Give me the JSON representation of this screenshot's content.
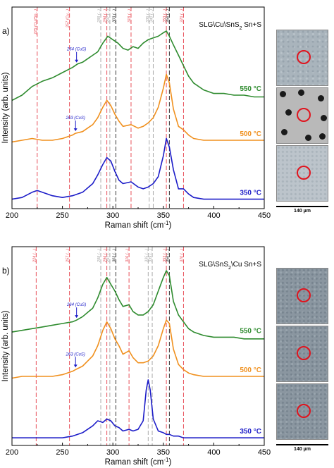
{
  "chart_data": [
    {
      "type": "line",
      "panel_label": "a)",
      "sample_label": "SLG\\Cu\\SnS",
      "sample_label_sub": "2",
      "sample_label_tail": " Sn+S",
      "xlabel": "Raman shift (cm",
      "xlabel_sup": "-1",
      "xlabel_tail": ")",
      "ylabel": "Intensity (arb. units)",
      "xlim": [
        200,
        450
      ],
      "xticks": [
        200,
        250,
        300,
        350,
        400,
        450
      ],
      "reference_lines": [
        {
          "x": 225,
          "label": "225 (Cu2Sn...)",
          "color": "#e8505a"
        },
        {
          "x": 257,
          "label": "257 (Cu...)",
          "color": "#e8505a"
        },
        {
          "x": 288,
          "label": "288 (...)",
          "color": "#aaaaaa"
        },
        {
          "x": 294,
          "label": "294 (...)",
          "color": "#e8505a"
        },
        {
          "x": 297,
          "label": "297 (...)",
          "color": "#aaaaaa"
        },
        {
          "x": 303,
          "label": "303 (...)",
          "color": "#333333"
        },
        {
          "x": 318,
          "label": "318 (...)",
          "color": "#e8505a"
        },
        {
          "x": 336,
          "label": "336 (...)",
          "color": "#aaaaaa"
        },
        {
          "x": 340,
          "label": "340 (...)",
          "color": "#aaaaaa"
        },
        {
          "x": 353,
          "label": "353 (...)",
          "color": "#e8505a"
        },
        {
          "x": 356,
          "label": "356 (...)",
          "color": "#333333"
        },
        {
          "x": 370,
          "label": "370 (...)",
          "color": "#e8505a"
        }
      ],
      "series": [
        {
          "name": "550 °C",
          "color": "#2e8b2e",
          "x": [
            200,
            210,
            220,
            230,
            240,
            250,
            260,
            265,
            270,
            280,
            285,
            290,
            295,
            300,
            305,
            310,
            315,
            320,
            325,
            330,
            335,
            340,
            345,
            350,
            353,
            356,
            360,
            365,
            370,
            375,
            380,
            390,
            400,
            410,
            420,
            430,
            440,
            450
          ],
          "y": [
            0.6,
            0.63,
            0.68,
            0.71,
            0.73,
            0.76,
            0.79,
            0.81,
            0.82,
            0.86,
            0.88,
            0.93,
            0.97,
            0.95,
            0.93,
            0.9,
            0.89,
            0.91,
            0.9,
            0.93,
            0.95,
            0.96,
            0.97,
            0.99,
            1.0,
            0.97,
            0.92,
            0.86,
            0.8,
            0.74,
            0.7,
            0.66,
            0.64,
            0.64,
            0.63,
            0.63,
            0.62,
            0.62
          ]
        },
        {
          "name": "500 °C",
          "color": "#f0901e",
          "x": [
            200,
            210,
            220,
            230,
            240,
            250,
            260,
            263,
            270,
            280,
            285,
            290,
            294,
            298,
            302,
            306,
            310,
            318,
            325,
            330,
            335,
            340,
            345,
            350,
            353,
            356,
            360,
            365,
            370,
            375,
            380,
            390,
            400,
            410,
            420,
            430,
            440,
            450
          ],
          "y": [
            0.36,
            0.37,
            0.38,
            0.37,
            0.37,
            0.38,
            0.4,
            0.41,
            0.42,
            0.46,
            0.5,
            0.56,
            0.6,
            0.57,
            0.52,
            0.48,
            0.45,
            0.46,
            0.44,
            0.45,
            0.47,
            0.5,
            0.56,
            0.67,
            0.75,
            0.7,
            0.55,
            0.45,
            0.43,
            0.4,
            0.38,
            0.37,
            0.37,
            0.37,
            0.37,
            0.37,
            0.37,
            0.37
          ]
        },
        {
          "name": "350 °C",
          "color": "#1c1cc8",
          "x": [
            200,
            210,
            220,
            225,
            230,
            240,
            250,
            260,
            270,
            280,
            285,
            290,
            294,
            298,
            302,
            306,
            310,
            318,
            325,
            330,
            335,
            340,
            345,
            350,
            353,
            356,
            360,
            365,
            370,
            375,
            380,
            390,
            400,
            410,
            420,
            430,
            440,
            450
          ],
          "y": [
            0.03,
            0.04,
            0.07,
            0.08,
            0.07,
            0.05,
            0.04,
            0.05,
            0.07,
            0.12,
            0.17,
            0.23,
            0.27,
            0.25,
            0.19,
            0.14,
            0.12,
            0.13,
            0.1,
            0.09,
            0.1,
            0.12,
            0.16,
            0.28,
            0.38,
            0.33,
            0.2,
            0.09,
            0.09,
            0.06,
            0.04,
            0.03,
            0.03,
            0.03,
            0.03,
            0.03,
            0.03,
            0.03
          ]
        }
      ],
      "annotations": [
        {
          "text": "264 (CuS)",
          "x": 264,
          "series": 0
        },
        {
          "text": "263 (CuS)",
          "x": 263,
          "series": 1
        }
      ],
      "scale_label": "140 µm"
    },
    {
      "type": "line",
      "panel_label": "b)",
      "sample_label": "SLG\\SnS",
      "sample_label_sub": "2",
      "sample_label_tail": "\\Cu Sn+S",
      "xlabel": "Raman shift (cm",
      "xlabel_sup": "-1",
      "xlabel_tail": ")",
      "ylabel": "Intensity (arb. units)",
      "xlim": [
        200,
        450
      ],
      "xticks": [
        200,
        250,
        300,
        350,
        400,
        450
      ],
      "reference_lines": [
        {
          "x": 224,
          "label": "224 (...)",
          "color": "#e8505a"
        },
        {
          "x": 257,
          "label": "257 (...)",
          "color": "#e8505a"
        },
        {
          "x": 288,
          "label": "288 (...)",
          "color": "#aaaaaa"
        },
        {
          "x": 294,
          "label": "294 (...)",
          "color": "#e8505a"
        },
        {
          "x": 297,
          "label": "297 (...)",
          "color": "#aaaaaa"
        },
        {
          "x": 303,
          "label": "303 (...)",
          "color": "#333333"
        },
        {
          "x": 316,
          "label": "316 (...)",
          "color": "#e8505a"
        },
        {
          "x": 335,
          "label": "335 (...)",
          "color": "#aaaaaa"
        },
        {
          "x": 339,
          "label": "339 (...)",
          "color": "#aaaaaa"
        },
        {
          "x": 353,
          "label": "353 (...)",
          "color": "#e8505a"
        },
        {
          "x": 356,
          "label": "356 (...)",
          "color": "#333333"
        },
        {
          "x": 370,
          "label": "370 (...)",
          "color": "#e8505a"
        }
      ],
      "series": [
        {
          "name": "550 °C",
          "color": "#2e8b2e",
          "x": [
            200,
            210,
            220,
            230,
            240,
            250,
            260,
            264,
            270,
            280,
            285,
            290,
            294,
            298,
            302,
            306,
            310,
            316,
            320,
            325,
            330,
            335,
            340,
            345,
            350,
            353,
            356,
            360,
            365,
            370,
            375,
            380,
            390,
            400,
            410,
            420,
            430,
            440,
            450
          ],
          "y": [
            0.64,
            0.65,
            0.66,
            0.67,
            0.68,
            0.69,
            0.7,
            0.71,
            0.73,
            0.78,
            0.84,
            0.92,
            0.96,
            0.92,
            0.88,
            0.83,
            0.79,
            0.8,
            0.76,
            0.74,
            0.74,
            0.76,
            0.8,
            0.88,
            0.96,
            1.0,
            0.97,
            0.82,
            0.74,
            0.7,
            0.66,
            0.64,
            0.62,
            0.61,
            0.61,
            0.61,
            0.6,
            0.6,
            0.6
          ]
        },
        {
          "name": "500 °C",
          "color": "#f0901e",
          "x": [
            200,
            210,
            220,
            230,
            240,
            250,
            260,
            263,
            270,
            280,
            285,
            290,
            294,
            298,
            302,
            306,
            310,
            316,
            320,
            325,
            330,
            335,
            340,
            345,
            350,
            353,
            356,
            360,
            365,
            370,
            375,
            380,
            390,
            400,
            410,
            420,
            430,
            440,
            450
          ],
          "y": [
            0.37,
            0.38,
            0.38,
            0.38,
            0.38,
            0.39,
            0.41,
            0.42,
            0.44,
            0.5,
            0.56,
            0.65,
            0.7,
            0.66,
            0.6,
            0.56,
            0.51,
            0.53,
            0.49,
            0.46,
            0.46,
            0.47,
            0.5,
            0.56,
            0.66,
            0.71,
            0.69,
            0.54,
            0.45,
            0.42,
            0.4,
            0.39,
            0.38,
            0.38,
            0.38,
            0.38,
            0.38,
            0.38,
            0.38
          ]
        },
        {
          "name": "350 °C",
          "color": "#1c1cc8",
          "x": [
            200,
            210,
            220,
            230,
            240,
            250,
            260,
            270,
            275,
            280,
            285,
            290,
            294,
            298,
            302,
            306,
            310,
            316,
            320,
            325,
            330,
            333,
            335,
            337,
            340,
            345,
            350,
            353,
            356,
            360,
            365,
            370,
            380,
            390,
            400,
            420,
            440,
            450
          ],
          "y": [
            0.02,
            0.02,
            0.02,
            0.02,
            0.02,
            0.02,
            0.03,
            0.05,
            0.07,
            0.09,
            0.12,
            0.11,
            0.13,
            0.12,
            0.09,
            0.08,
            0.06,
            0.07,
            0.06,
            0.07,
            0.12,
            0.3,
            0.36,
            0.3,
            0.13,
            0.06,
            0.05,
            0.04,
            0.04,
            0.03,
            0.03,
            0.02,
            0.02,
            0.02,
            0.02,
            0.02,
            0.02,
            0.02
          ]
        }
      ],
      "annotations": [
        {
          "text": "264 (CuS)",
          "x": 264,
          "series": 0
        },
        {
          "text": "263 (CuS)",
          "x": 263,
          "series": 1
        }
      ],
      "scale_label": "140 µm"
    }
  ]
}
